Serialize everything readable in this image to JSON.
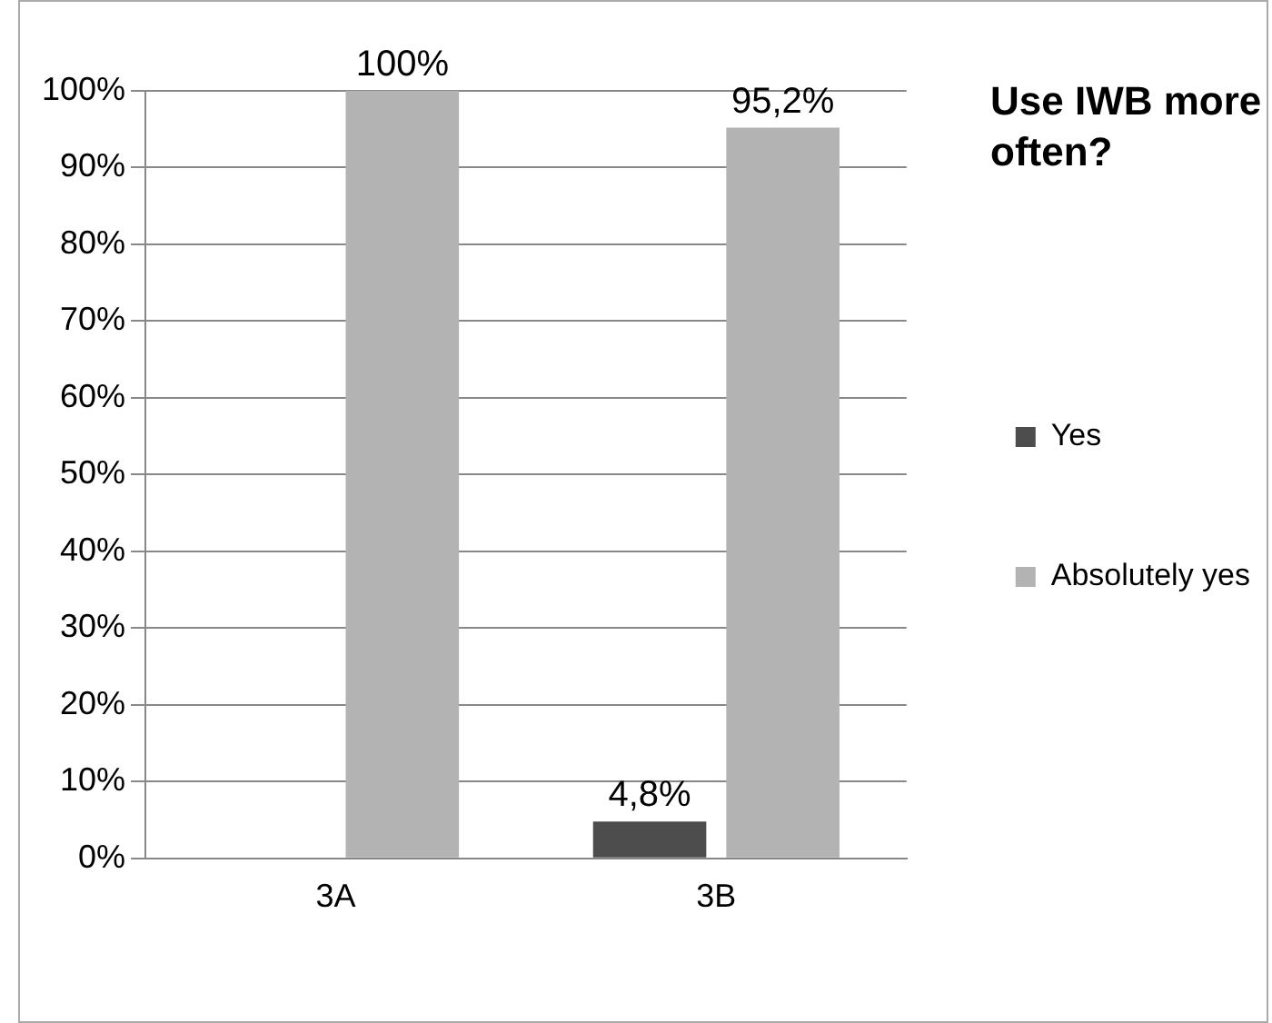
{
  "chart_data": {
    "type": "bar",
    "title": "Use IWB more often?",
    "categories": [
      "3A",
      "3B"
    ],
    "series": [
      {
        "name": "Yes",
        "color": "#4d4d4d",
        "values": [
          0,
          4.8
        ],
        "value_labels": [
          null,
          "4,8%"
        ]
      },
      {
        "name": "Absolutely yes",
        "color": "#b3b3b3",
        "values": [
          100,
          95.2
        ],
        "value_labels": [
          "100%",
          "95,2%"
        ]
      }
    ],
    "ylim": [
      0,
      100
    ],
    "yticks": [
      {
        "value": 0,
        "label": "0%"
      },
      {
        "value": 10,
        "label": "10%"
      },
      {
        "value": 20,
        "label": "20%"
      },
      {
        "value": 30,
        "label": "30%"
      },
      {
        "value": 40,
        "label": "40%"
      },
      {
        "value": 50,
        "label": "50%"
      },
      {
        "value": 60,
        "label": "60%"
      },
      {
        "value": 70,
        "label": "70%"
      },
      {
        "value": 80,
        "label": "80%"
      },
      {
        "value": 90,
        "label": "90%"
      },
      {
        "value": 100,
        "label": "100%"
      }
    ],
    "grid": "y",
    "legend": "right"
  }
}
